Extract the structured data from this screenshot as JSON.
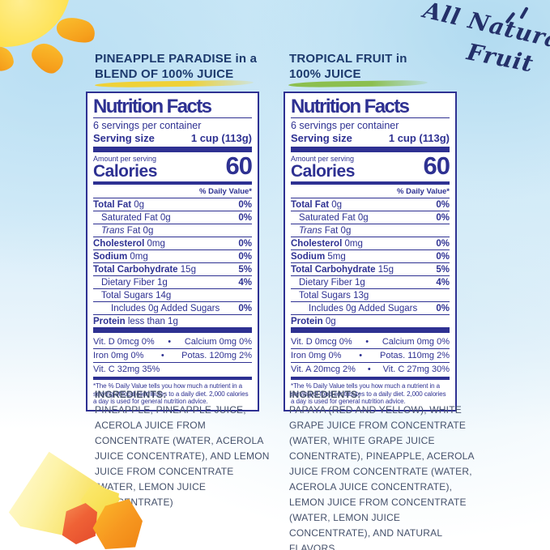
{
  "badge": {
    "word1": "All Natural",
    "word2": "Fruit"
  },
  "colors": {
    "label_navy": "#2e3192",
    "heading_navy": "#1d3a6d",
    "ingredients_ink": "#44506a",
    "swash_yellow": "#efd138",
    "swash_green": "#8cbf4f"
  },
  "products": [
    {
      "heading": {
        "line1": "PINEAPPLE PARADISE in a",
        "line2": "BLEND OF 100% JUICE"
      },
      "swash_color": "#efd138",
      "label": {
        "title": "Nutrition Facts",
        "servings": "6 servings per container",
        "serving_size_label": "Serving size",
        "serving_size_value": "1 cup (113g)",
        "amount_per_serving": "Amount per serving",
        "calories_label": "Calories",
        "calories_value": "60",
        "daily_value_header": "% Daily Value*",
        "rows": [
          {
            "name": "Total Fat",
            "rest": "0g",
            "dv": "0%",
            "bold": true,
            "indent": 0
          },
          {
            "name": "Saturated Fat 0g",
            "dv": "0%",
            "indent": 1
          },
          {
            "name": "Trans",
            "rest": "Fat 0g",
            "dv": "",
            "italic": true,
            "indent": 1
          },
          {
            "name": "Cholesterol",
            "rest": "0mg",
            "dv": "0%",
            "bold": true,
            "indent": 0
          },
          {
            "name": "Sodium",
            "rest": "0mg",
            "dv": "0%",
            "bold": true,
            "indent": 0
          },
          {
            "name": "Total Carbohydrate",
            "rest": "15g",
            "dv": "5%",
            "bold": true,
            "indent": 0
          },
          {
            "name": "Dietary Fiber 1g",
            "dv": "4%",
            "indent": 1
          },
          {
            "name": "Total Sugars 14g",
            "dv": "",
            "indent": 1
          },
          {
            "name": "Includes 0g Added Sugars",
            "dv": "0%",
            "indent": 2
          },
          {
            "name": "Protein",
            "rest": "less than 1g",
            "dv": "",
            "bold": true,
            "indent": 0
          }
        ],
        "micros": [
          [
            "Vit. D 0mcg 0%",
            "Calcium 0mg 0%"
          ],
          [
            "Iron 0mg 0%",
            "Potas. 120mg 2%"
          ],
          [
            "Vit. C 32mg 35%"
          ]
        ],
        "footnote": "*The % Daily Value tells you how much a nutrient in a serving of food contributes to a daily diet. 2,000 calories a day is used for general nutrition advice."
      },
      "ingredients": {
        "title": "INGREDIENTS:",
        "text": "PINEAPPLE, PINEAPPLE JUICE, ACEROLA JUICE FROM CONCENTRATE (WATER, ACEROLA JUICE CONCENTRATE), AND LEMON JUICE FROM CONCENTRATE (WATER, LEMON JUICE CONCENTRATE)"
      }
    },
    {
      "heading": {
        "line1": "TROPICAL FRUIT in",
        "line2": "100% JUICE"
      },
      "swash_color": "#8cbf4f",
      "label": {
        "title": "Nutrition Facts",
        "servings": "6 servings per container",
        "serving_size_label": "Serving size",
        "serving_size_value": "1 cup (113g)",
        "amount_per_serving": "Amount per serving",
        "calories_label": "Calories",
        "calories_value": "60",
        "daily_value_header": "% Daily Value*",
        "rows": [
          {
            "name": "Total Fat",
            "rest": "0g",
            "dv": "0%",
            "bold": true,
            "indent": 0
          },
          {
            "name": "Saturated Fat 0g",
            "dv": "0%",
            "indent": 1
          },
          {
            "name": "Trans",
            "rest": "Fat 0g",
            "dv": "",
            "italic": true,
            "indent": 1
          },
          {
            "name": "Cholesterol",
            "rest": "0mg",
            "dv": "0%",
            "bold": true,
            "indent": 0
          },
          {
            "name": "Sodium",
            "rest": "5mg",
            "dv": "0%",
            "bold": true,
            "indent": 0
          },
          {
            "name": "Total Carbohydrate",
            "rest": "15g",
            "dv": "5%",
            "bold": true,
            "indent": 0
          },
          {
            "name": "Dietary Fiber 1g",
            "dv": "4%",
            "indent": 1
          },
          {
            "name": "Total Sugars 13g",
            "dv": "",
            "indent": 1
          },
          {
            "name": "Includes 0g Added Sugars",
            "dv": "0%",
            "indent": 2
          },
          {
            "name": "Protein",
            "rest": "0g",
            "dv": "",
            "bold": true,
            "indent": 0
          }
        ],
        "micros": [
          [
            "Vit. D 0mcg 0%",
            "Calcium 0mg 0%"
          ],
          [
            "Iron 0mg 0%",
            "Potas. 110mg 2%"
          ],
          [
            "Vit. A 20mcg 2%",
            "Vit. C 27mg 30%"
          ]
        ],
        "footnote": "*The % Daily Value tells you how much a nutrient in a serving of food contributes to a daily diet. 2,000 calories a day is used for general nutrition advice."
      },
      "ingredients": {
        "title": "INGREDIENTS:",
        "text": "PAPAYA (RED AND YELLOW), WHITE GRAPE JUICE FROM CONCENTRATE (WATER, WHITE GRAPE JUICE CONENTRATE), PINEAPPLE, ACEROLA JUICE FROM CONCENTRATE (WATER, ACEROLA JUICE CONCENTRATE), LEMON JUICE FROM CONCENTRATE (WATER, LEMON JUICE CONCENTRATE), AND NATURAL FLAVORS"
      }
    }
  ]
}
